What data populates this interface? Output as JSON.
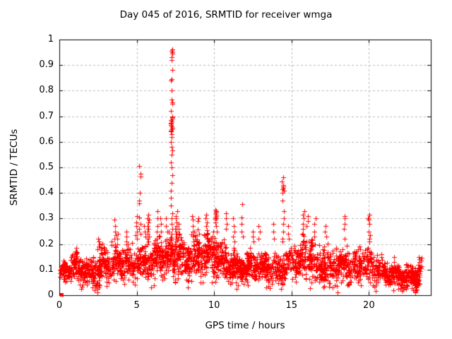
{
  "window": {
    "background": "#ffffff"
  },
  "chart_data": {
    "type": "scatter",
    "title": "Day 045 of 2016, SRMTID for receiver wmga",
    "xlabel": "GPS time / hours",
    "ylabel": "SRMTID / TECUs",
    "xlim": [
      0,
      24
    ],
    "ylim": [
      0,
      1
    ],
    "xticks": [
      0,
      5,
      10,
      15,
      20
    ],
    "xtick_labels": [
      "0",
      "5",
      "10",
      "15",
      "20"
    ],
    "yticks": [
      0,
      0.1,
      0.2,
      0.3,
      0.4,
      0.5,
      0.6,
      0.7,
      0.8,
      0.9,
      1
    ],
    "ytick_labels": [
      "0",
      "0.1",
      "0.2",
      "0.3",
      "0.4",
      "0.5",
      "0.6",
      "0.7",
      "0.8",
      "0.9",
      "1"
    ],
    "grid": true,
    "grid_style": "dashed",
    "grid_color": "#b9b9b9",
    "axis_color": "#000000",
    "legend": "none",
    "series_name": "SRMTID",
    "marker": {
      "shape": "plus",
      "color": "#ff0000",
      "size": 7
    },
    "origin_marker": {
      "x": 0.12,
      "y": 0.004,
      "shape": "filled-square",
      "size": 5
    },
    "x_start": 0.04,
    "x_end": 23.42,
    "points_per_hour": 112,
    "seed": 45,
    "band": {
      "hours": [
        0,
        1,
        2,
        3,
        4,
        5,
        6,
        7,
        8,
        9,
        10,
        11,
        12,
        13,
        14,
        15,
        16,
        17,
        18,
        19,
        20,
        21,
        22,
        23,
        24
      ],
      "mean": [
        0.085,
        0.1,
        0.09,
        0.115,
        0.12,
        0.135,
        0.125,
        0.145,
        0.15,
        0.15,
        0.165,
        0.12,
        0.105,
        0.11,
        0.105,
        0.12,
        0.14,
        0.125,
        0.11,
        0.1,
        0.13,
        0.085,
        0.07,
        0.075,
        0.095
      ],
      "spread": [
        0.025,
        0.03,
        0.035,
        0.04,
        0.035,
        0.04,
        0.04,
        0.045,
        0.045,
        0.05,
        0.055,
        0.04,
        0.033,
        0.033,
        0.033,
        0.04,
        0.05,
        0.045,
        0.045,
        0.04,
        0.05,
        0.026,
        0.024,
        0.03,
        0.035
      ]
    },
    "spike_columns": [
      {
        "x": 0.85,
        "ys": [
          0.16,
          0.15
        ]
      },
      {
        "x": 1.05,
        "ys": [
          0.185,
          0.17
        ]
      },
      {
        "x": 2.5,
        "ys": [
          0.22,
          0.21,
          0.19,
          0.18
        ]
      },
      {
        "x": 2.62,
        "ys": [
          0.2,
          0.185
        ]
      },
      {
        "x": 3.35,
        "ys": [
          0.21,
          0.195
        ]
      },
      {
        "x": 3.6,
        "ys": [
          0.295,
          0.27,
          0.25,
          0.235,
          0.22,
          0.2,
          0.19
        ]
      },
      {
        "x": 3.75,
        "ys": [
          0.24,
          0.22,
          0.2
        ]
      },
      {
        "x": 4.35,
        "ys": [
          0.25,
          0.23,
          0.21,
          0.2
        ]
      },
      {
        "x": 4.95,
        "ys": [
          0.31,
          0.285,
          0.27,
          0.25,
          0.235,
          0.22
        ]
      },
      {
        "x": 5.2,
        "ys": [
          0.505,
          0.475,
          0.465,
          0.4,
          0.37,
          0.36,
          0.305,
          0.28,
          0.26,
          0.24
        ]
      },
      {
        "x": 5.55,
        "ys": [
          0.27,
          0.25,
          0.23
        ]
      },
      {
        "x": 5.75,
        "ys": [
          0.315,
          0.3,
          0.295,
          0.285,
          0.27,
          0.26,
          0.25,
          0.24,
          0.23,
          0.22,
          0.21,
          0.2
        ]
      },
      {
        "x": 6.3,
        "ys": [
          0.33,
          0.3,
          0.27,
          0.25,
          0.22
        ]
      },
      {
        "x": 6.55,
        "ys": [
          0.3,
          0.28,
          0.25,
          0.23
        ]
      },
      {
        "x": 6.95,
        "ys": [
          0.3,
          0.27,
          0.25
        ]
      },
      {
        "x": 7.1,
        "ys": [
          0.25,
          0.22
        ]
      },
      {
        "x": 7.25,
        "ys": [
          0.96,
          0.955,
          0.95,
          0.945,
          0.93,
          0.92,
          0.88,
          0.845,
          0.84,
          0.8,
          0.765,
          0.755,
          0.75,
          0.72,
          0.7,
          0.695,
          0.69,
          0.685,
          0.68,
          0.675,
          0.67,
          0.665,
          0.66,
          0.655,
          0.65,
          0.645,
          0.64,
          0.63,
          0.62,
          0.6,
          0.58,
          0.565,
          0.55,
          0.52,
          0.5,
          0.47,
          0.44,
          0.41,
          0.38,
          0.35,
          0.32,
          0.3,
          0.28,
          0.26,
          0.24,
          0.22,
          0.2
        ]
      },
      {
        "x": 7.55,
        "ys": [
          0.33,
          0.31,
          0.3,
          0.285,
          0.27,
          0.26,
          0.25,
          0.24,
          0.23,
          0.22,
          0.21,
          0.2,
          0.19,
          0.18
        ]
      },
      {
        "x": 7.7,
        "ys": [
          0.28,
          0.26,
          0.24,
          0.22,
          0.2,
          0.19
        ]
      },
      {
        "x": 8.6,
        "ys": [
          0.31,
          0.295,
          0.27,
          0.25,
          0.23,
          0.21
        ]
      },
      {
        "x": 9.0,
        "ys": [
          0.3,
          0.29
        ]
      },
      {
        "x": 9.5,
        "ys": [
          0.315,
          0.3,
          0.285,
          0.27,
          0.255,
          0.24,
          0.23,
          0.22
        ]
      },
      {
        "x": 10.1,
        "ys": [
          0.335,
          0.33,
          0.325,
          0.32,
          0.315,
          0.31,
          0.305,
          0.3,
          0.295,
          0.285,
          0.27,
          0.25
        ]
      },
      {
        "x": 10.8,
        "ys": [
          0.32,
          0.3,
          0.28,
          0.26
        ]
      },
      {
        "x": 11.3,
        "ys": [
          0.3,
          0.27,
          0.25,
          0.23,
          0.21
        ]
      },
      {
        "x": 11.8,
        "ys": [
          0.355,
          0.305,
          0.28,
          0.25,
          0.23
        ]
      },
      {
        "x": 12.5,
        "ys": [
          0.25,
          0.23,
          0.21
        ]
      },
      {
        "x": 12.9,
        "ys": [
          0.27,
          0.25,
          0.22
        ]
      },
      {
        "x": 13.85,
        "ys": [
          0.28,
          0.25,
          0.22
        ]
      },
      {
        "x": 14.45,
        "ys": [
          0.46,
          0.445,
          0.43,
          0.425,
          0.42,
          0.415,
          0.41,
          0.4,
          0.37,
          0.33,
          0.3,
          0.28,
          0.25,
          0.22,
          0.21
        ]
      },
      {
        "x": 14.8,
        "ys": [
          0.27,
          0.24,
          0.22
        ]
      },
      {
        "x": 15.8,
        "ys": [
          0.33,
          0.315,
          0.3,
          0.28,
          0.26
        ]
      },
      {
        "x": 16.0,
        "ys": [
          0.31,
          0.29,
          0.27
        ]
      },
      {
        "x": 16.5,
        "ys": [
          0.3,
          0.28,
          0.25,
          0.23
        ]
      },
      {
        "x": 17.2,
        "ys": [
          0.27,
          0.25,
          0.23
        ]
      },
      {
        "x": 18.4,
        "ys": [
          0.31,
          0.3,
          0.28,
          0.26,
          0.22
        ]
      },
      {
        "x": 20.0,
        "ys": [
          0.315,
          0.3,
          0.3,
          0.295,
          0.28,
          0.25,
          0.235,
          0.22,
          0.21
        ]
      },
      {
        "x": 23.25,
        "ys": [
          0.15,
          0.14,
          0.13,
          0.12
        ]
      }
    ],
    "low_outliers": [
      [
        2.15,
        0.03
      ],
      [
        2.3,
        0.02
      ],
      [
        2.45,
        0.025
      ],
      [
        2.6,
        0.04
      ],
      [
        3.05,
        0.035
      ],
      [
        5.95,
        0.03
      ],
      [
        6.1,
        0.04
      ],
      [
        9.85,
        0.05
      ],
      [
        11.45,
        0.025
      ],
      [
        11.55,
        0.04
      ],
      [
        12.2,
        0.04
      ],
      [
        13.35,
        0.03
      ],
      [
        16.3,
        0.05
      ],
      [
        18.65,
        0.045
      ],
      [
        21.6,
        0.02
      ],
      [
        21.9,
        0.025
      ],
      [
        22.2,
        0.03
      ],
      [
        22.5,
        0.035
      ]
    ]
  }
}
